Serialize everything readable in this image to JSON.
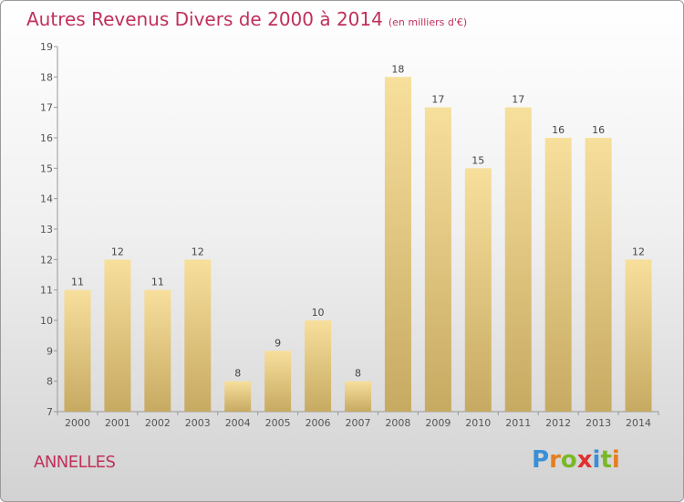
{
  "header": {
    "title": "Autres Revenus Divers de 2000 à 2014",
    "unit": "(en milliers d'€)"
  },
  "commune": "ANNELLES",
  "logo": {
    "letters": [
      {
        "ch": "P",
        "color": "#3a8fd6"
      },
      {
        "ch": "r",
        "color": "#e67e22"
      },
      {
        "ch": "o",
        "color": "#7ab828"
      },
      {
        "ch": "x",
        "color": "#e0312f"
      },
      {
        "ch": "i",
        "color": "#3a8fd6"
      },
      {
        "ch": "t",
        "color": "#7ab828"
      },
      {
        "ch": "i",
        "color": "#e67e22"
      }
    ]
  },
  "chart_data": {
    "type": "bar",
    "title": "Autres Revenus Divers de 2000 à 2014",
    "categories": [
      "2000",
      "2001",
      "2002",
      "2003",
      "2004",
      "2005",
      "2006",
      "2007",
      "2008",
      "2009",
      "2010",
      "2011",
      "2012",
      "2013",
      "2014"
    ],
    "values": [
      11,
      12,
      11,
      12,
      8,
      9,
      10,
      8,
      18,
      17,
      15,
      17,
      16,
      16,
      12
    ],
    "ylim": [
      7,
      19
    ],
    "yticks": [
      7,
      8,
      9,
      10,
      11,
      12,
      13,
      14,
      15,
      16,
      17,
      18,
      19
    ],
    "grid": false,
    "bar_color_top": "#f7df9c",
    "bar_color_bottom": "#c7aa62"
  }
}
